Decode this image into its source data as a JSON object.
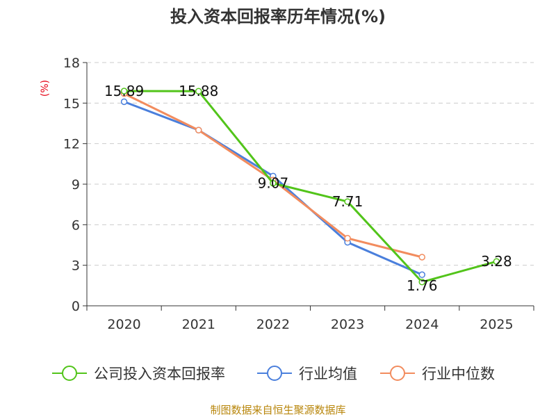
{
  "chart_data": {
    "type": "line",
    "title": "投入资本回报率历年情况(%)",
    "ylabel": "(%)",
    "xlabel": "",
    "ylim": [
      0,
      18
    ],
    "yticks": [
      0,
      3,
      6,
      9,
      12,
      15,
      18
    ],
    "categories": [
      "2020",
      "2021",
      "2022",
      "2023",
      "2024",
      "2025"
    ],
    "grid": true,
    "legend_position": "bottom",
    "series": [
      {
        "name": "公司投入资本回报率",
        "color": "#52c41a",
        "values": [
          15.89,
          15.88,
          9.07,
          7.71,
          1.76,
          3.28
        ],
        "labels": [
          "15.89",
          "15.88",
          "9.07",
          "7.71",
          "1.76",
          "3.28"
        ]
      },
      {
        "name": "行业均值",
        "color": "#4a7fdc",
        "values": [
          15.1,
          13.0,
          9.6,
          4.7,
          2.3,
          null
        ]
      },
      {
        "name": "行业中位数",
        "color": "#f28c5e",
        "values": [
          15.7,
          13.0,
          9.3,
          5.0,
          3.6,
          null
        ]
      }
    ]
  },
  "source": "制图数据来自恒生聚源数据库"
}
